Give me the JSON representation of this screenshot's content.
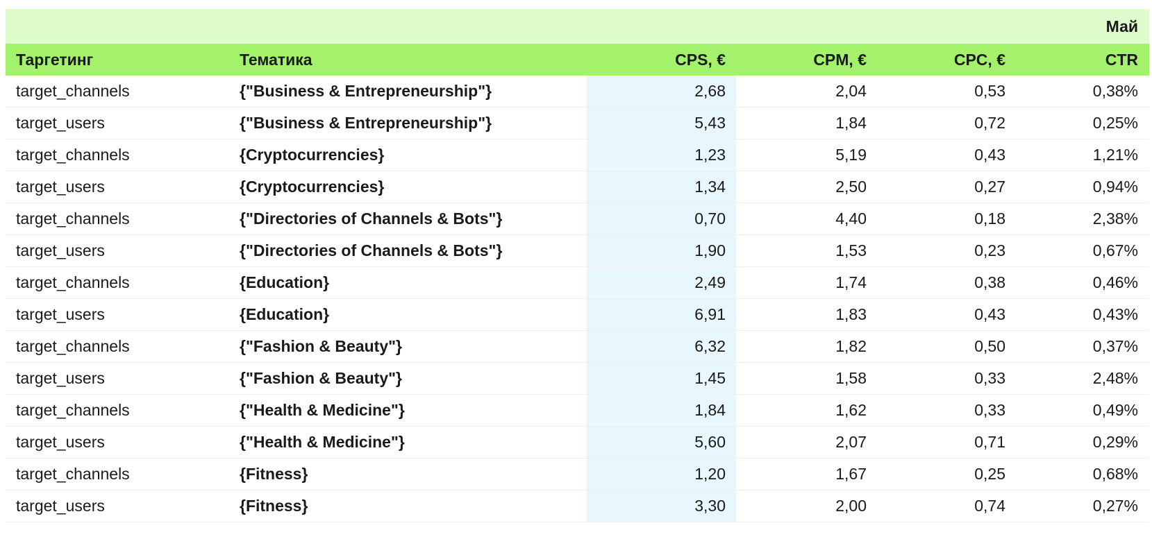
{
  "table": {
    "month_label": "Май",
    "columns": [
      "Таргетинг",
      "Тематика",
      "CPS, €",
      "CPM, €",
      "CPC, €",
      "CTR"
    ],
    "rows": [
      [
        "target_channels",
        "{\"Business & Entrepreneurship\"}",
        "2,68",
        "2,04",
        "0,53",
        "0,38%"
      ],
      [
        "target_users",
        "{\"Business & Entrepreneurship\"}",
        "5,43",
        "1,84",
        "0,72",
        "0,25%"
      ],
      [
        "target_channels",
        "{Cryptocurrencies}",
        "1,23",
        "5,19",
        "0,43",
        "1,21%"
      ],
      [
        "target_users",
        "{Cryptocurrencies}",
        "1,34",
        "2,50",
        "0,27",
        "0,94%"
      ],
      [
        "target_channels",
        "{\"Directories of Channels & Bots\"}",
        "0,70",
        "4,40",
        "0,18",
        "2,38%"
      ],
      [
        "target_users",
        "{\"Directories of Channels & Bots\"}",
        "1,90",
        "1,53",
        "0,23",
        "0,67%"
      ],
      [
        "target_channels",
        "{Education}",
        "2,49",
        "1,74",
        "0,38",
        "0,46%"
      ],
      [
        "target_users",
        "{Education}",
        "6,91",
        "1,83",
        "0,43",
        "0,43%"
      ],
      [
        "target_channels",
        "{\"Fashion & Beauty\"}",
        "6,32",
        "1,82",
        "0,50",
        "0,37%"
      ],
      [
        "target_users",
        "{\"Fashion & Beauty\"}",
        "1,45",
        "1,58",
        "0,33",
        "2,48%"
      ],
      [
        "target_channels",
        "{\"Health & Medicine\"}",
        "1,84",
        "1,62",
        "0,33",
        "0,49%"
      ],
      [
        "target_users",
        "{\"Health & Medicine\"}",
        "5,60",
        "2,07",
        "0,71",
        "0,29%"
      ],
      [
        "target_channels",
        "{Fitness}",
        "1,20",
        "1,67",
        "0,25",
        "0,68%"
      ],
      [
        "target_users",
        "{Fitness}",
        "3,30",
        "2,00",
        "0,74",
        "0,27%"
      ]
    ]
  },
  "colors": {
    "month_band": "#dffccd",
    "header_band": "#a4f26c",
    "cps_highlight": "#e8f6fd"
  }
}
